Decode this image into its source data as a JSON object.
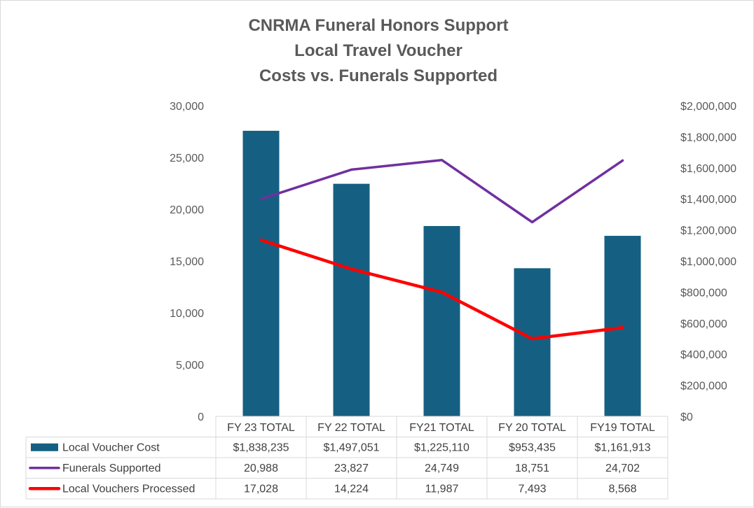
{
  "chart_data": {
    "type": "bar",
    "title_lines": [
      "CNRMA Funeral Honors Support",
      "Local Travel Voucher",
      "Costs vs. Funerals Supported"
    ],
    "categories": [
      "FY 23 TOTAL",
      "FY 22 TOTAL",
      "FY21 TOTAL",
      "FY 20 TOTAL",
      "FY19 TOTAL"
    ],
    "left_axis": {
      "ylim": [
        0,
        30000
      ],
      "ticks": [
        0,
        5000,
        10000,
        15000,
        20000,
        25000,
        30000
      ],
      "tick_labels": [
        "0",
        "5,000",
        "10,000",
        "15,000",
        "20,000",
        "25,000",
        "30,000"
      ]
    },
    "right_axis": {
      "ylim": [
        0,
        2000000
      ],
      "ticks": [
        0,
        200000,
        400000,
        600000,
        800000,
        1000000,
        1200000,
        1400000,
        1600000,
        1800000,
        2000000
      ],
      "tick_labels": [
        "$0",
        "$200,000",
        "$400,000",
        "$600,000",
        "$800,000",
        "$1,000,000",
        "$1,200,000",
        "$1,400,000",
        "$1,600,000",
        "$1,800,000",
        "$2,000,000"
      ]
    },
    "series": [
      {
        "name": "Local Voucher Cost",
        "kind": "bar",
        "axis": "right",
        "color": "#156082",
        "values": [
          1838235,
          1497051,
          1225110,
          953435,
          1161913
        ],
        "labels": [
          "$1,838,235",
          "$1,497,051",
          "$1,225,110",
          "$953,435",
          "$1,161,913"
        ]
      },
      {
        "name": "Funerals Supported",
        "kind": "line",
        "axis": "left",
        "color": "#7030a0",
        "values": [
          20988,
          23827,
          24749,
          18751,
          24702
        ],
        "labels": [
          "20,988",
          "23,827",
          "24,749",
          "18,751",
          "24,702"
        ]
      },
      {
        "name": "Local Vouchers Processed",
        "kind": "line",
        "axis": "left",
        "color": "#ff0000",
        "values": [
          17028,
          14224,
          11987,
          7493,
          8568
        ],
        "labels": [
          "17,028",
          "14,224",
          "11,987",
          "7,493",
          "8,568"
        ]
      }
    ],
    "legend": "data-table",
    "grid": false
  }
}
